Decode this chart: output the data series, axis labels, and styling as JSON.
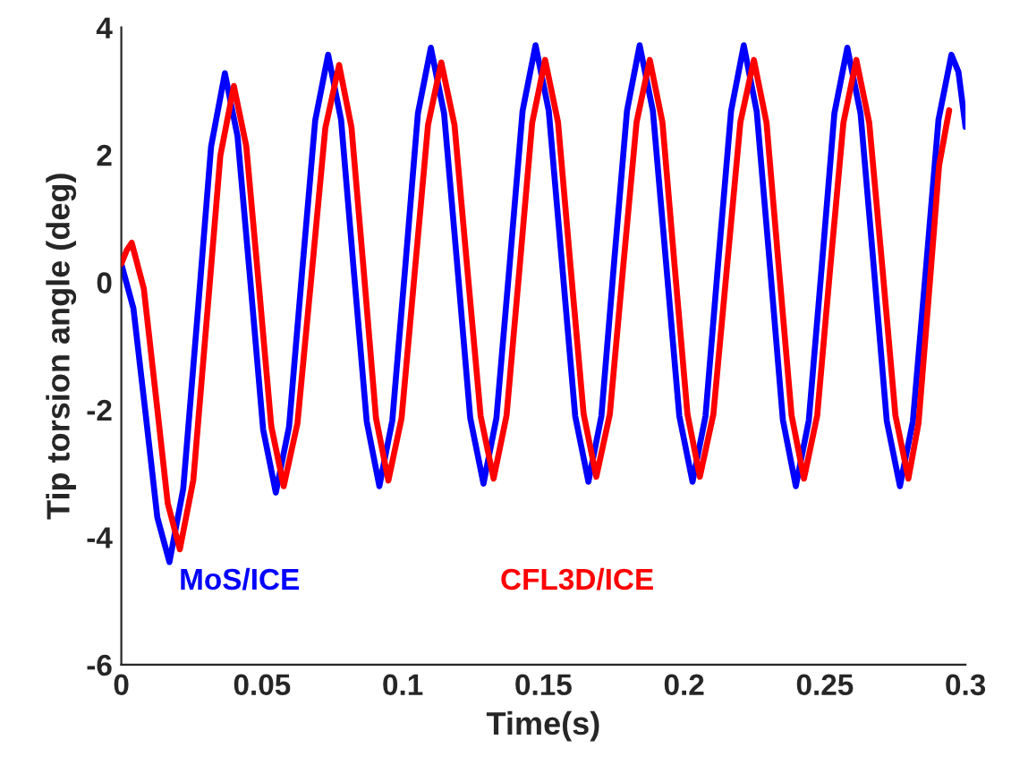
{
  "chart_data": {
    "type": "line",
    "xlabel": "Time(s)",
    "ylabel": "Tip torsion angle (deg)",
    "xlim": [
      0,
      0.3
    ],
    "xticks": [
      0,
      0.05,
      0.1,
      0.15,
      0.2,
      0.25,
      0.3
    ],
    "ylim": [
      -6,
      4
    ],
    "yticks": [
      -6,
      -4,
      -2,
      0,
      2,
      4
    ],
    "grid": false,
    "legend": false,
    "series": [
      {
        "name": "MoS/ICE",
        "color": "#0000ff",
        "x": [
          0,
          0.0043,
          0.0086,
          0.0128,
          0.0171,
          0.022,
          0.027,
          0.0319,
          0.0368,
          0.0413,
          0.0459,
          0.0504,
          0.0549,
          0.0596,
          0.0642,
          0.0689,
          0.0735,
          0.0781,
          0.0826,
          0.0872,
          0.0917,
          0.0963,
          0.1009,
          0.1054,
          0.11,
          0.1147,
          0.1194,
          0.124,
          0.1287,
          0.1333,
          0.138,
          0.1426,
          0.1472,
          0.1519,
          0.1566,
          0.1613,
          0.166,
          0.1706,
          0.1751,
          0.1797,
          0.1842,
          0.1889,
          0.1936,
          0.1983,
          0.203,
          0.2076,
          0.2121,
          0.2167,
          0.2212,
          0.2258,
          0.2305,
          0.2351,
          0.2397,
          0.2443,
          0.2489,
          0.2534,
          0.258,
          0.2627,
          0.2674,
          0.272,
          0.2767,
          0.2813,
          0.2859,
          0.2904,
          0.295,
          0.2975,
          0.3
        ],
        "values": [
          0.29,
          -0.41,
          -2.05,
          -3.69,
          -4.39,
          -3.24,
          -0.56,
          2.13,
          3.28,
          2.29,
          -0.01,
          -2.31,
          -3.3,
          -2.27,
          0.14,
          2.54,
          3.57,
          2.55,
          0.19,
          -2.18,
          -3.2,
          -2.17,
          0.24,
          2.65,
          3.68,
          2.65,
          0.26,
          -2.13,
          -3.16,
          -2.13,
          0.28,
          2.69,
          3.72,
          2.69,
          0.3,
          -2.1,
          -3.13,
          -2.1,
          0.3,
          2.69,
          3.72,
          2.69,
          0.3,
          -2.1,
          -3.13,
          -2.1,
          0.3,
          2.69,
          3.72,
          2.68,
          0.26,
          -2.16,
          -3.2,
          -2.17,
          0.24,
          2.65,
          3.68,
          2.65,
          0.24,
          -2.17,
          -3.2,
          -2.18,
          0.19,
          2.55,
          3.57,
          3.3,
          2.44
        ]
      },
      {
        "name": "CFL3D/ICE",
        "color": "#ff0000",
        "x": [
          0,
          0.0019,
          0.0037,
          0.008,
          0.0123,
          0.0165,
          0.0208,
          0.0256,
          0.0304,
          0.0352,
          0.04,
          0.0444,
          0.0489,
          0.0533,
          0.0577,
          0.0626,
          0.0676,
          0.0725,
          0.0774,
          0.0818,
          0.0862,
          0.0905,
          0.0949,
          0.0996,
          0.1043,
          0.109,
          0.1137,
          0.1184,
          0.123,
          0.1277,
          0.1323,
          0.1369,
          0.1415,
          0.146,
          0.1506,
          0.1552,
          0.1597,
          0.1643,
          0.1688,
          0.1736,
          0.1783,
          0.1831,
          0.1878,
          0.1923,
          0.1967,
          0.2012,
          0.2056,
          0.2104,
          0.2152,
          0.22,
          0.2248,
          0.2293,
          0.2337,
          0.2382,
          0.2426,
          0.2473,
          0.2519,
          0.2566,
          0.2612,
          0.2658,
          0.2705,
          0.2751,
          0.2797,
          0.2833,
          0.287,
          0.2906,
          0.2942
        ],
        "values": [
          0.29,
          0.5,
          0.62,
          -0.1,
          -1.79,
          -3.47,
          -4.19,
          -3.1,
          -0.56,
          1.99,
          3.08,
          2.14,
          -0.06,
          -2.26,
          -3.2,
          -2.21,
          0.11,
          2.42,
          3.41,
          2.43,
          0.15,
          -2.13,
          -3.11,
          -2.13,
          0.17,
          2.47,
          3.45,
          2.47,
          0.19,
          -2.1,
          -3.08,
          -2.09,
          0.21,
          2.5,
          3.49,
          2.51,
          0.22,
          -2.07,
          -3.05,
          -2.07,
          0.22,
          2.51,
          3.49,
          2.51,
          0.22,
          -2.07,
          -3.05,
          -2.07,
          0.22,
          2.51,
          3.49,
          2.5,
          0.21,
          -2.09,
          -3.08,
          -2.09,
          0.21,
          2.5,
          3.49,
          2.5,
          0.21,
          -2.09,
          -3.08,
          -2.21,
          -0.19,
          1.83,
          2.7
        ]
      }
    ]
  }
}
